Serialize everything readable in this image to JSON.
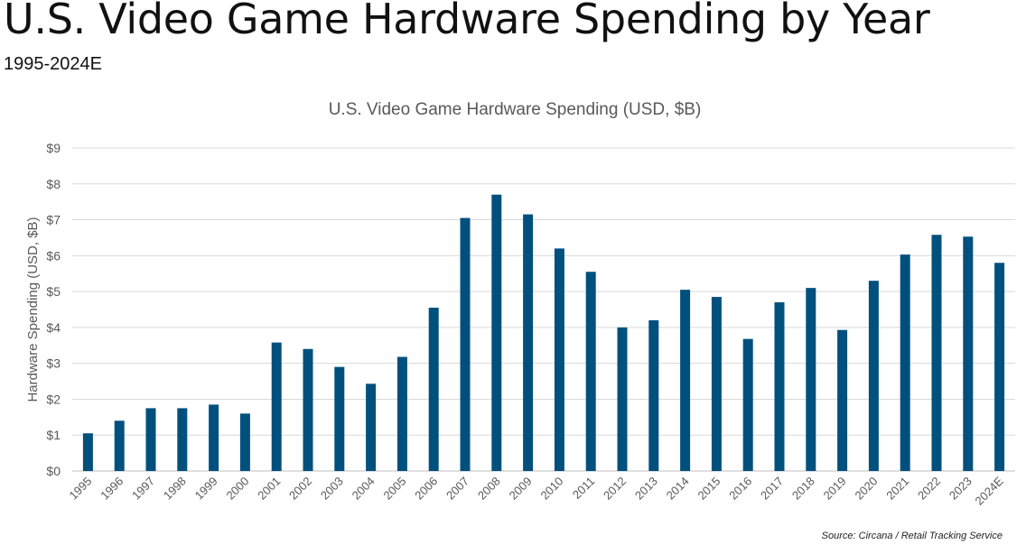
{
  "page": {
    "title": "U.S. Video Game Hardware Spending by Year",
    "subtitle": "1995-2024E",
    "source": "Source: Circana / Retail Tracking Service"
  },
  "colors": {
    "bar": "#00507e",
    "grid": "#d9d9d9",
    "axis_text": "#595959"
  },
  "chart_data": {
    "type": "bar",
    "title": "U.S. Video Game Hardware Spending (USD, $B)",
    "xlabel": "",
    "ylabel": "Hardware Spending (USD, $B)",
    "ylim": [
      0,
      9
    ],
    "yticks": [
      "$0",
      "$1",
      "$2",
      "$3",
      "$4",
      "$5",
      "$6",
      "$7",
      "$8",
      "$9"
    ],
    "grid": true,
    "categories": [
      "1995",
      "1996",
      "1997",
      "1998",
      "1999",
      "2000",
      "2001",
      "2002",
      "2003",
      "2004",
      "2005",
      "2006",
      "2007",
      "2008",
      "2009",
      "2010",
      "2011",
      "2012",
      "2013",
      "2014",
      "2015",
      "2016",
      "2017",
      "2018",
      "2019",
      "2020",
      "2021",
      "2022",
      "2023",
      "2024E"
    ],
    "values": [
      1.05,
      1.4,
      1.75,
      1.75,
      1.85,
      1.6,
      3.58,
      3.4,
      2.9,
      2.43,
      3.18,
      4.55,
      7.05,
      7.7,
      7.15,
      6.2,
      5.55,
      4.0,
      4.2,
      5.05,
      4.85,
      3.68,
      4.7,
      5.1,
      3.93,
      5.3,
      6.03,
      6.58,
      6.53,
      5.8
    ]
  }
}
